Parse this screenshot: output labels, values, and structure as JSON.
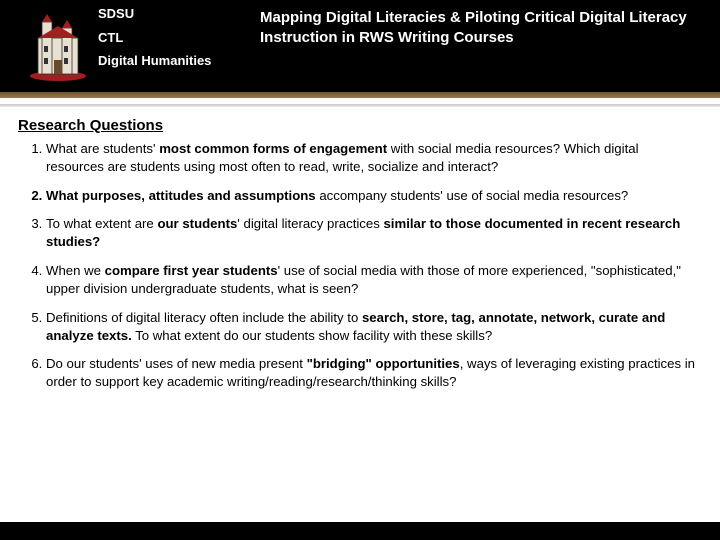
{
  "header": {
    "label1": "SDSU",
    "label2": "CTL",
    "label3": "Digital Humanities",
    "title": "Mapping Digital Literacies & Piloting Critical Digital Literacy Instruction in RWS Writing Courses"
  },
  "colors": {
    "header_bg": "#000000",
    "stripe_gold1": "#6b5430",
    "stripe_gold2": "#9c7b3f",
    "logo_roof": "#a02020",
    "logo_wall": "#e8e0d0"
  },
  "section_title": "Research Questions",
  "questions": [
    {
      "bold_marker": false,
      "html": "What are students' <b>most common forms of engagement</b> with social media resources? Which digital resources are students using most often to read, write, socialize and interact?"
    },
    {
      "bold_marker": true,
      "html": "<b>What purposes, attitudes and assumptions</b> accompany students' use of social media resources?"
    },
    {
      "bold_marker": false,
      "html": "To what extent are <b>our students</b>' digital literacy practices <b>similar to those documented in recent research studies?</b>"
    },
    {
      "bold_marker": false,
      "html": "When we <b>compare first year students</b>' use of social media with those of more experienced, \"sophisticated,\" upper division undergraduate students, what is seen?"
    },
    {
      "bold_marker": false,
      "html": "Definitions of digital literacy often include the ability to <b>search, store, tag, annotate, network, curate and analyze texts.</b> To what extent do our students show facility with these skills?"
    },
    {
      "bold_marker": false,
      "html": "Do our students' uses of new media present <b>\"bridging\" opportunities</b>, ways of leveraging existing practices in order to support key academic writing/reading/research/thinking skills?"
    }
  ]
}
